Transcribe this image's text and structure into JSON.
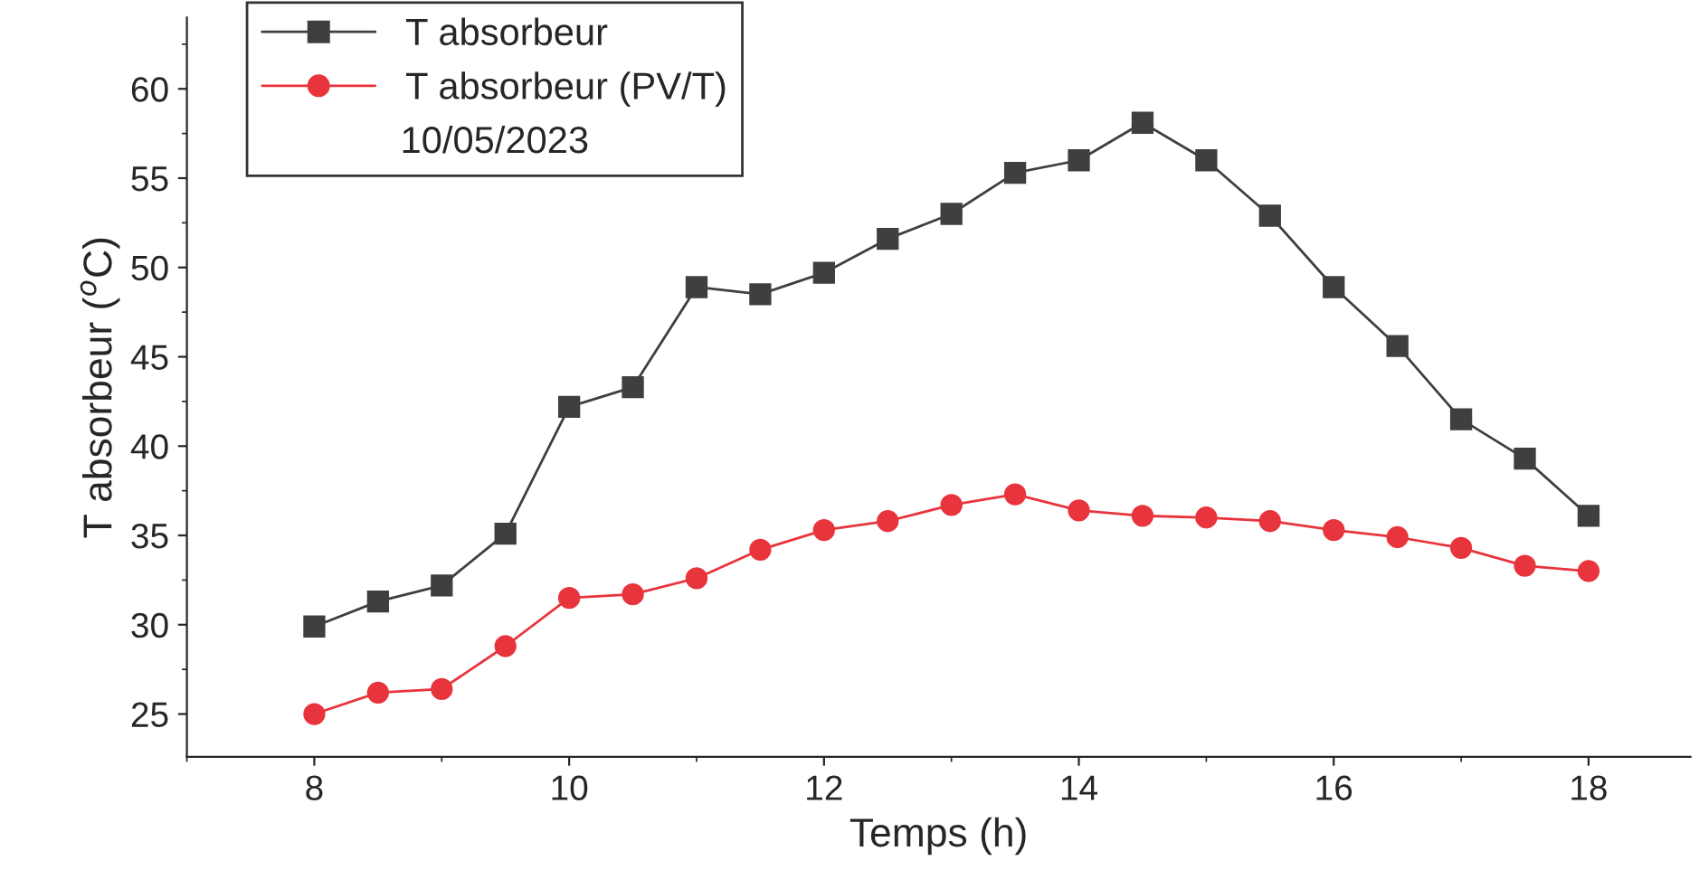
{
  "chart_data": {
    "type": "line",
    "xlabel": "Temps (h)",
    "ylabel": "T absorbeur ($^{o}$C)",
    "legend_title": "10/05/2023",
    "x": [
      8,
      8.5,
      9,
      9.5,
      10,
      10.5,
      11,
      11.5,
      12,
      12.5,
      13,
      13.5,
      14,
      14.5,
      15,
      15.5,
      16,
      16.5,
      17,
      17.5,
      18
    ],
    "series": [
      {
        "name": "T absorbeur",
        "color": "#3f3f3f",
        "marker": "square",
        "values": [
          29.9,
          31.3,
          32.2,
          35.1,
          42.2,
          43.3,
          48.9,
          48.5,
          49.7,
          51.6,
          53.0,
          55.3,
          56.0,
          58.1,
          56.0,
          52.9,
          48.9,
          45.6,
          41.5,
          39.3,
          36.1
        ]
      },
      {
        "name": "T absorbeur (PV/T)",
        "color": "#e8343c",
        "marker": "circle",
        "values": [
          25.0,
          26.2,
          26.4,
          28.8,
          31.5,
          31.7,
          32.6,
          34.2,
          35.3,
          35.8,
          36.7,
          37.3,
          36.4,
          36.1,
          36.0,
          35.8,
          35.3,
          34.9,
          34.3,
          33.3,
          33.0
        ]
      }
    ],
    "xlim": [
      7,
      18.8
    ],
    "xticks": [
      8,
      10,
      12,
      14,
      16,
      18
    ],
    "ylim": [
      22.6,
      64
    ],
    "yticks": [
      25,
      30,
      35,
      40,
      45,
      50,
      55,
      60
    ],
    "grid": false,
    "legend": "top left",
    "line_style": "solid"
  }
}
